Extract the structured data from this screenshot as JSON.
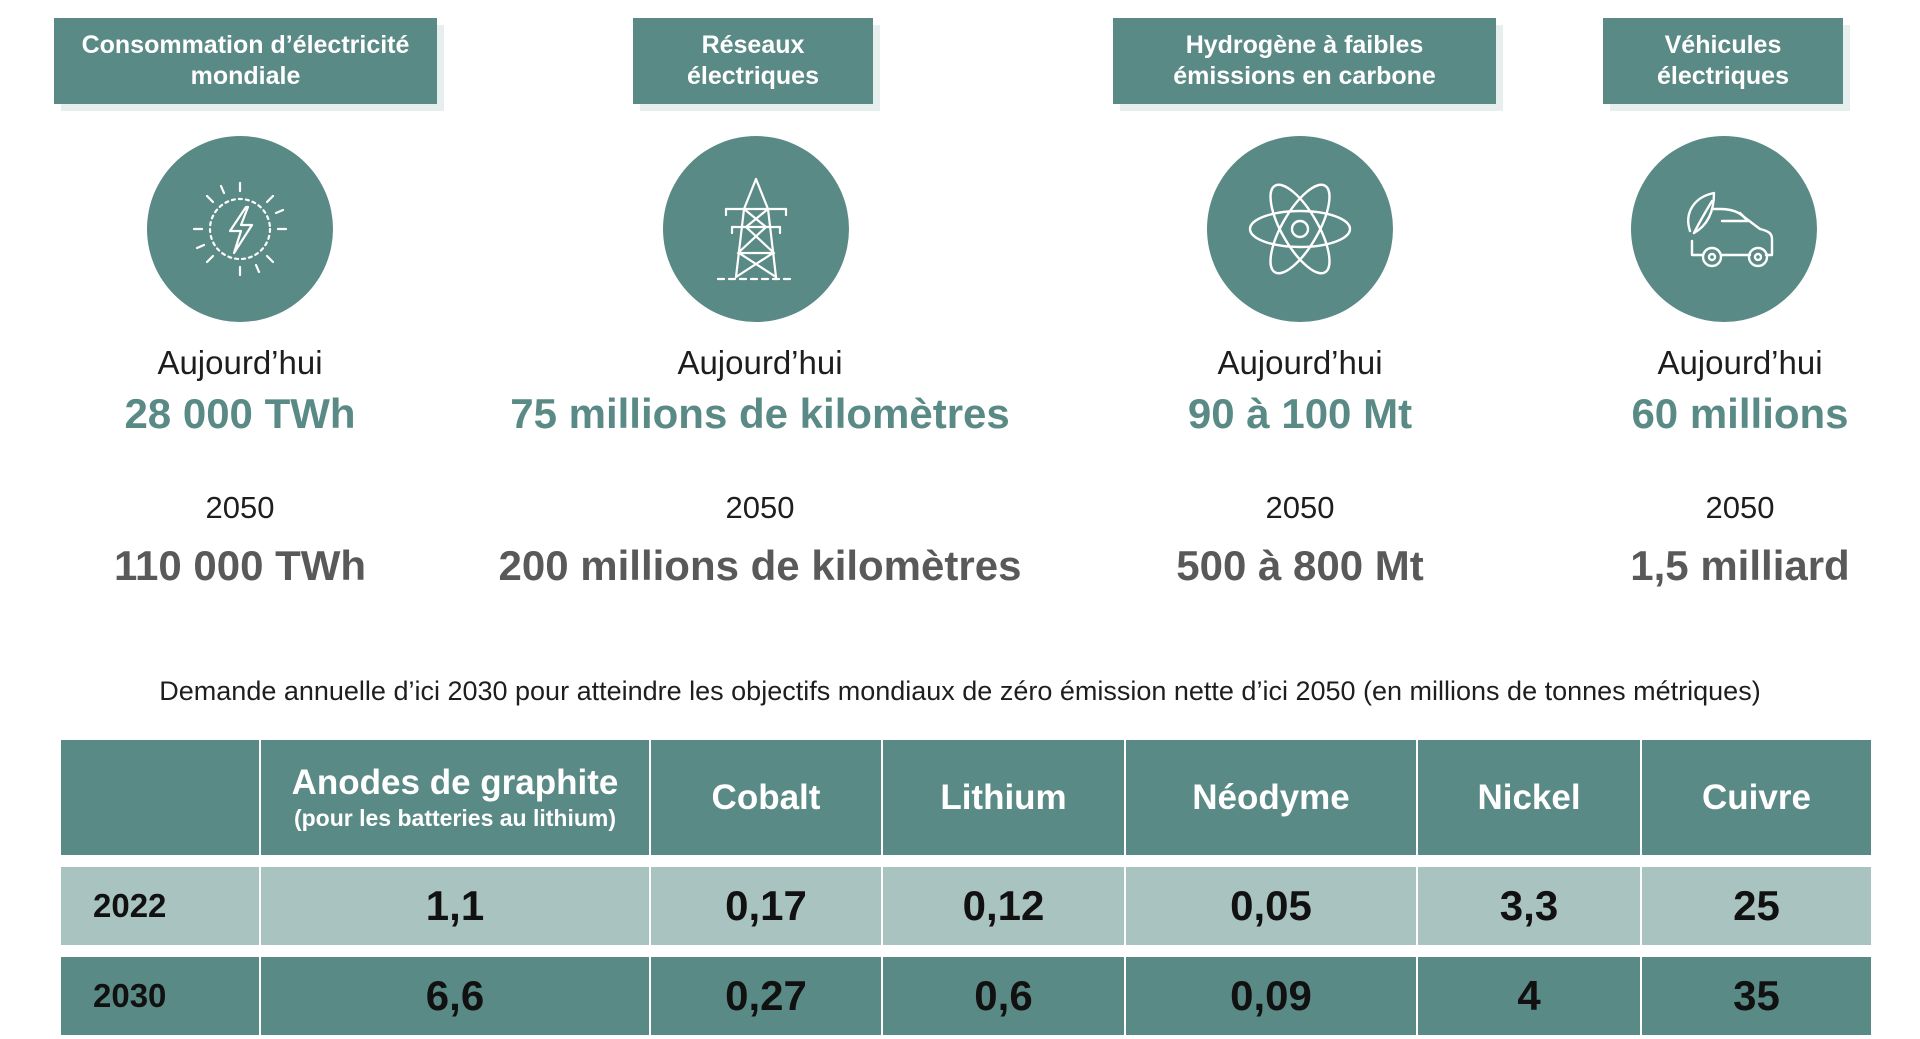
{
  "columns": [
    {
      "tag": "Consommation d’électricité mondiale",
      "icon": "lightning-sun-icon",
      "today_label": "Aujourd’hui",
      "today_value": "28 000 TWh",
      "year_label": "2050",
      "future_value": "110 000 TWh"
    },
    {
      "tag": "Réseaux électriques",
      "icon": "power-pylon-icon",
      "today_label": "Aujourd’hui",
      "today_value": "75 millions de kilomètres",
      "year_label": "2050",
      "future_value": "200 millions de kilomètres"
    },
    {
      "tag": "Hydrogène à faibles émissions en carbone",
      "icon": "atom-icon",
      "today_label": "Aujourd’hui",
      "today_value": "90 à 100 Mt",
      "year_label": "2050",
      "future_value": "500 à 800 Mt"
    },
    {
      "tag": "Véhicules électriques",
      "icon": "electric-car-icon",
      "today_label": "Aujourd’hui",
      "today_value": "60 millions",
      "year_label": "2050",
      "future_value": "1,5 milliard"
    }
  ],
  "caption": "Demande annuelle d’ici 2030 pour atteindre les objectifs mondiaux de zéro émission nette d’ici 2050 (en millions de tonnes métriques)",
  "table": {
    "headers": [
      {
        "title": "",
        "sub": ""
      },
      {
        "title": "Anodes de graphite",
        "sub": "(pour les batteries au lithium)"
      },
      {
        "title": "Cobalt",
        "sub": ""
      },
      {
        "title": "Lithium",
        "sub": ""
      },
      {
        "title": "Néodyme",
        "sub": ""
      },
      {
        "title": "Nickel",
        "sub": ""
      },
      {
        "title": "Cuivre",
        "sub": ""
      }
    ],
    "rows": [
      {
        "year": "2022",
        "values": [
          "1,1",
          "0,17",
          "0,12",
          "0,05",
          "3,3",
          "25"
        ]
      },
      {
        "year": "2030",
        "values": [
          "6,6",
          "0,27",
          "0,6",
          "0,09",
          "4",
          "35"
        ]
      }
    ]
  },
  "colors": {
    "accent": "#5a8a85",
    "light_row": "#a9c3c0",
    "future_value": "#595959"
  }
}
